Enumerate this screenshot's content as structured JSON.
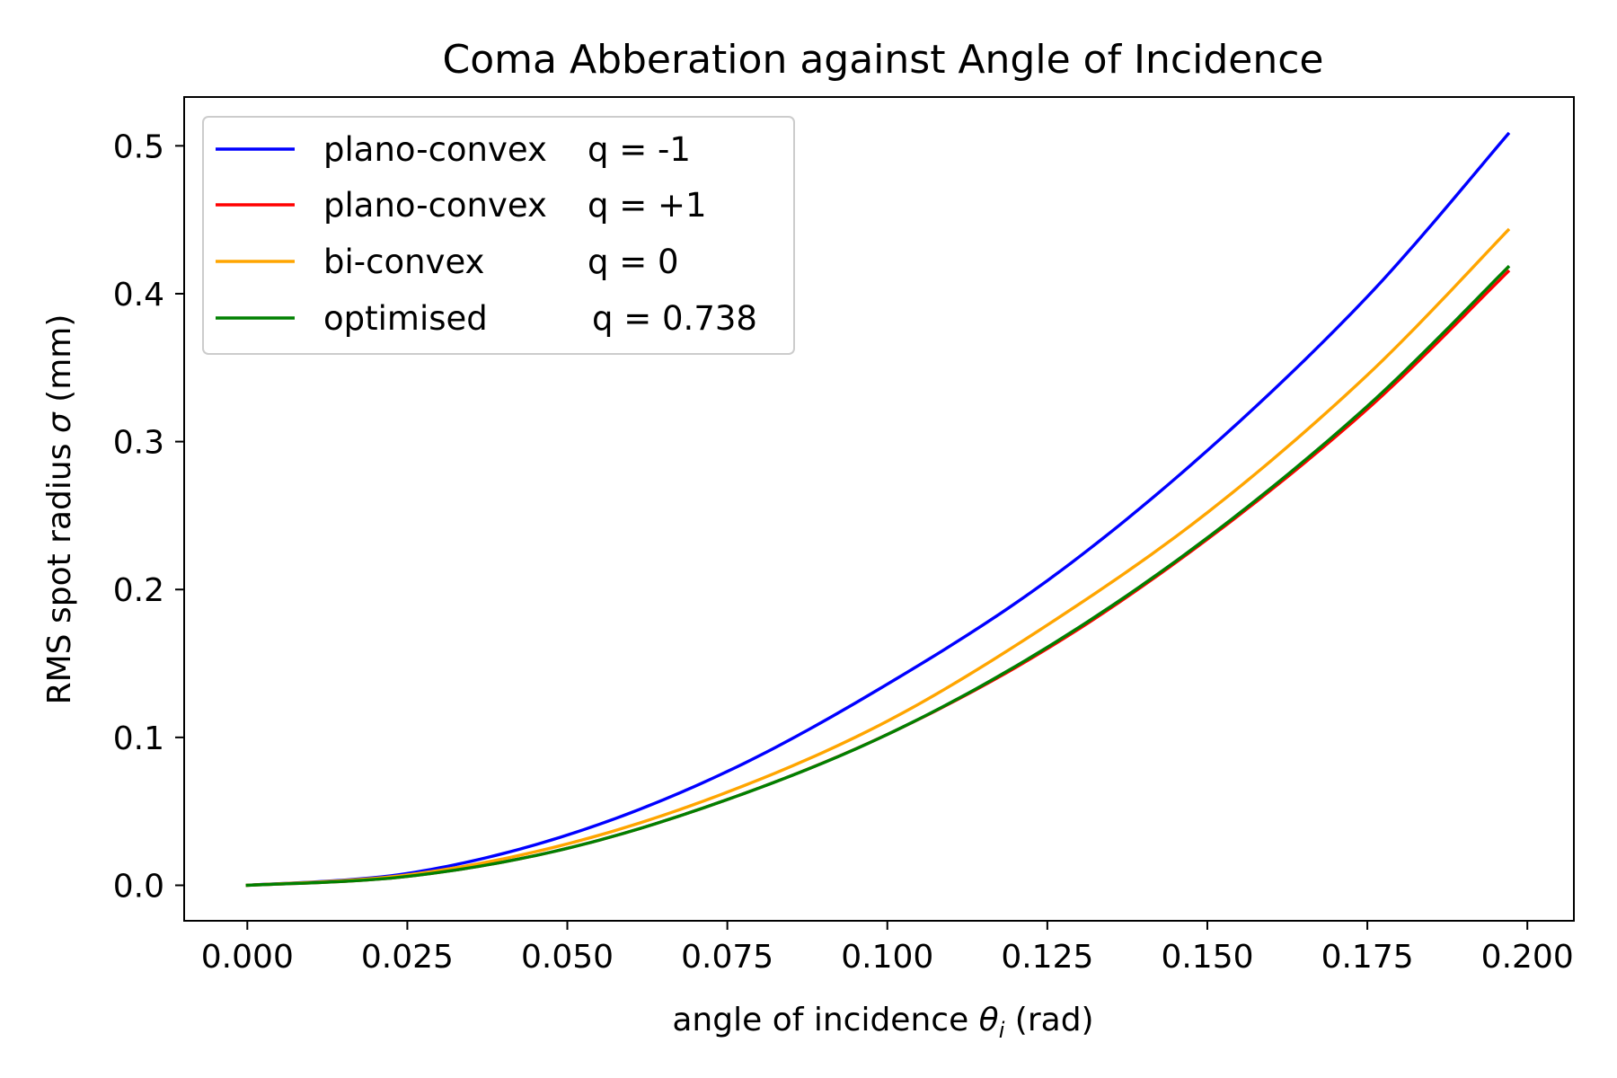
{
  "chart_data": {
    "type": "line",
    "title": "Coma Abberation against Angle of Incidence",
    "xlabel": {
      "prefix": "angle of incidence ",
      "symbol": "θ",
      "sub": "i",
      "suffix": " (rad)"
    },
    "ylabel": {
      "prefix": "RMS spot radius ",
      "symbol": "σ",
      "suffix": " (mm)"
    },
    "xlim": [
      -0.00987,
      0.20727
    ],
    "ylim": [
      -0.024,
      0.533
    ],
    "xticks": [
      0.0,
      0.025,
      0.05,
      0.075,
      0.1,
      0.125,
      0.15,
      0.175,
      0.2
    ],
    "xtick_labels": [
      "0.000",
      "0.025",
      "0.050",
      "0.075",
      "0.100",
      "0.125",
      "0.150",
      "0.175",
      "0.200"
    ],
    "yticks": [
      0.0,
      0.1,
      0.2,
      0.3,
      0.4,
      0.5
    ],
    "ytick_labels": [
      "0.0",
      "0.1",
      "0.2",
      "0.3",
      "0.4",
      "0.5"
    ],
    "grid": false,
    "legend_position": "top-left",
    "x": [
      0.0,
      0.025,
      0.05,
      0.075,
      0.1,
      0.125,
      0.15,
      0.175,
      0.197
    ],
    "series": [
      {
        "name": "plano-convex q = -1",
        "legend_label": "plano-convex",
        "legend_q": "q = -1",
        "color": "#0000ff",
        "values": [
          0.0,
          0.008,
          0.034,
          0.077,
          0.136,
          0.206,
          0.294,
          0.398,
          0.508
        ]
      },
      {
        "name": "plano-convex q = +1",
        "legend_label": "plano-convex",
        "legend_q": "q = +1",
        "color": "#ff0000",
        "values": [
          0.0,
          0.006,
          0.025,
          0.058,
          0.102,
          0.16,
          0.234,
          0.322,
          0.415
        ]
      },
      {
        "name": "bi-convex q = 0",
        "legend_label": "bi-convex",
        "legend_q": "q = 0",
        "color": "#ffa500",
        "values": [
          0.0,
          0.007,
          0.028,
          0.063,
          0.111,
          0.176,
          0.252,
          0.345,
          0.443
        ]
      },
      {
        "name": "optimised q = 0.738",
        "legend_label": "optimised",
        "legend_q": "q = 0.738",
        "color": "#008000",
        "values": [
          0.0,
          0.006,
          0.025,
          0.058,
          0.102,
          0.161,
          0.235,
          0.324,
          0.418
        ]
      }
    ]
  }
}
